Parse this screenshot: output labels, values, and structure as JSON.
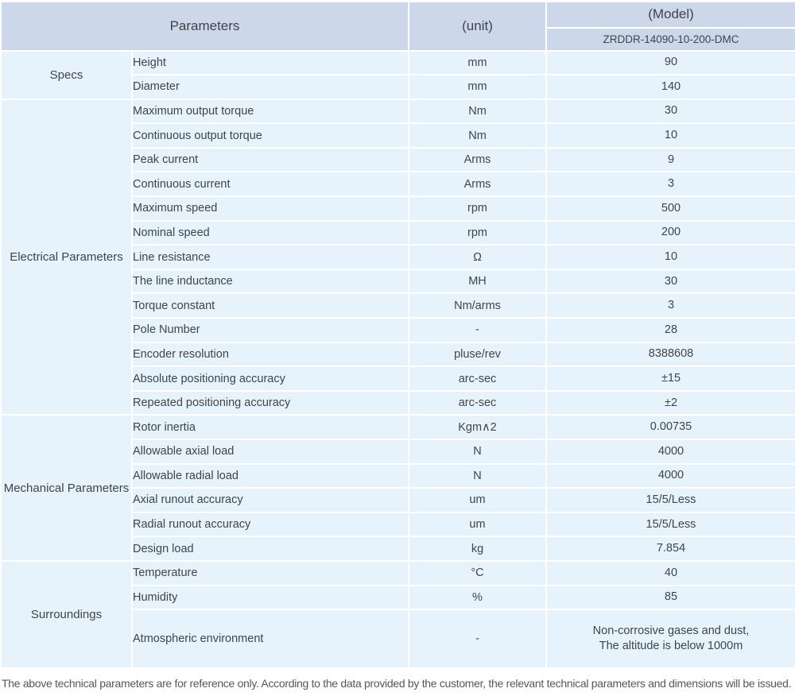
{
  "table": {
    "header": {
      "parameters_label": "Parameters",
      "unit_label": "(unit)",
      "model_label": "(Model)",
      "model_value": "ZRDDR-14090-10-200-DMC"
    },
    "sections": [
      {
        "category": "Specs",
        "rows": [
          {
            "name": "Height",
            "unit": "mm",
            "value": "90"
          },
          {
            "name": "Diameter",
            "unit": "mm",
            "value": "140"
          }
        ]
      },
      {
        "category": "Electrical Parameters",
        "rows": [
          {
            "name": "Maximum output torque",
            "unit": "Nm",
            "value": "30"
          },
          {
            "name": "Continuous output torque",
            "unit": "Nm",
            "value": "10"
          },
          {
            "name": "Peak current",
            "unit": "Arms",
            "value": "9"
          },
          {
            "name": "Continuous current",
            "unit": "Arms",
            "value": "3"
          },
          {
            "name": "Maximum speed",
            "unit": "rpm",
            "value": "500"
          },
          {
            "name": "Nominal speed",
            "unit": "rpm",
            "value": "200"
          },
          {
            "name": "Line resistance",
            "unit": "Ω",
            "value": "10"
          },
          {
            "name": "The line inductance",
            "unit": "MH",
            "value": "30"
          },
          {
            "name": "Torque constant",
            "unit": "Nm/arms",
            "value": "3"
          },
          {
            "name": "Pole Number",
            "unit": "-",
            "value": "28"
          },
          {
            "name": "Encoder resolution",
            "unit": "pluse/rev",
            "value": "8388608"
          },
          {
            "name": "Absolute positioning accuracy",
            "unit": "arc-sec",
            "value": "±15"
          },
          {
            "name": "Repeated positioning accuracy",
            "unit": "arc-sec",
            "value": "±2"
          }
        ]
      },
      {
        "category": "Mechanical Parameters",
        "rows": [
          {
            "name": "Rotor inertia",
            "unit": "Kgm∧2",
            "value": "0.00735"
          },
          {
            "name": "Allowable axial load",
            "unit": "N",
            "value": "4000"
          },
          {
            "name": "Allowable radial load",
            "unit": "N",
            "value": "4000"
          },
          {
            "name": "Axial runout accuracy",
            "unit": "um",
            "value": "15/5/Less"
          },
          {
            "name": "Radial runout accuracy",
            "unit": "um",
            "value": "15/5/Less"
          },
          {
            "name": "Design load",
            "unit": "kg",
            "value": "7.854"
          }
        ]
      },
      {
        "category": "Surroundings",
        "rows": [
          {
            "name": "Temperature",
            "unit": "°C",
            "value": "40"
          },
          {
            "name": "Humidity",
            "unit": "%",
            "value": "85"
          },
          {
            "name": "Atmospheric environment",
            "unit": "-",
            "value": "Non-corrosive gases and dust,\nThe altitude is below 1000m",
            "tall": true
          }
        ]
      }
    ]
  },
  "footer_note": "The above technical parameters are for reference only. According to the data provided by the customer, the relevant technical parameters and dimensions will be issued.",
  "colors": {
    "header_bg": "#ccd7ea",
    "body_bg": "#e6f3fc",
    "text": "#414449",
    "note_text": "#56575b",
    "separator": "#ffffff"
  }
}
